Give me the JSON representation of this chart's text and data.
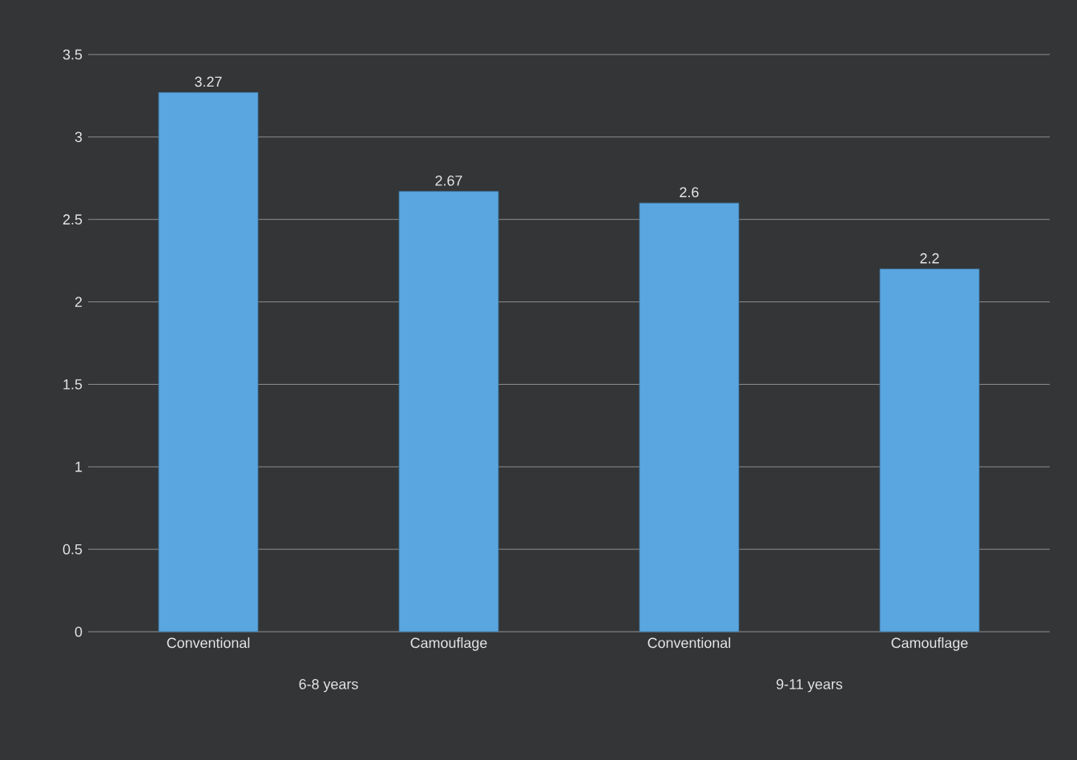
{
  "chart_data": {
    "type": "bar",
    "categories": [
      "Conventional",
      "Camouflage",
      "Conventional",
      "Camouflage"
    ],
    "values": [
      3.27,
      2.67,
      2.6,
      2.2
    ],
    "color": "#5aa6e0",
    "ylim": [
      0,
      3.5
    ],
    "yticks": [
      0,
      0.5,
      1,
      1.5,
      2,
      2.5,
      3,
      3.5
    ],
    "grid": "y",
    "data_labels": true,
    "annotations": [
      "6-8 years",
      "9-11 years"
    ]
  }
}
